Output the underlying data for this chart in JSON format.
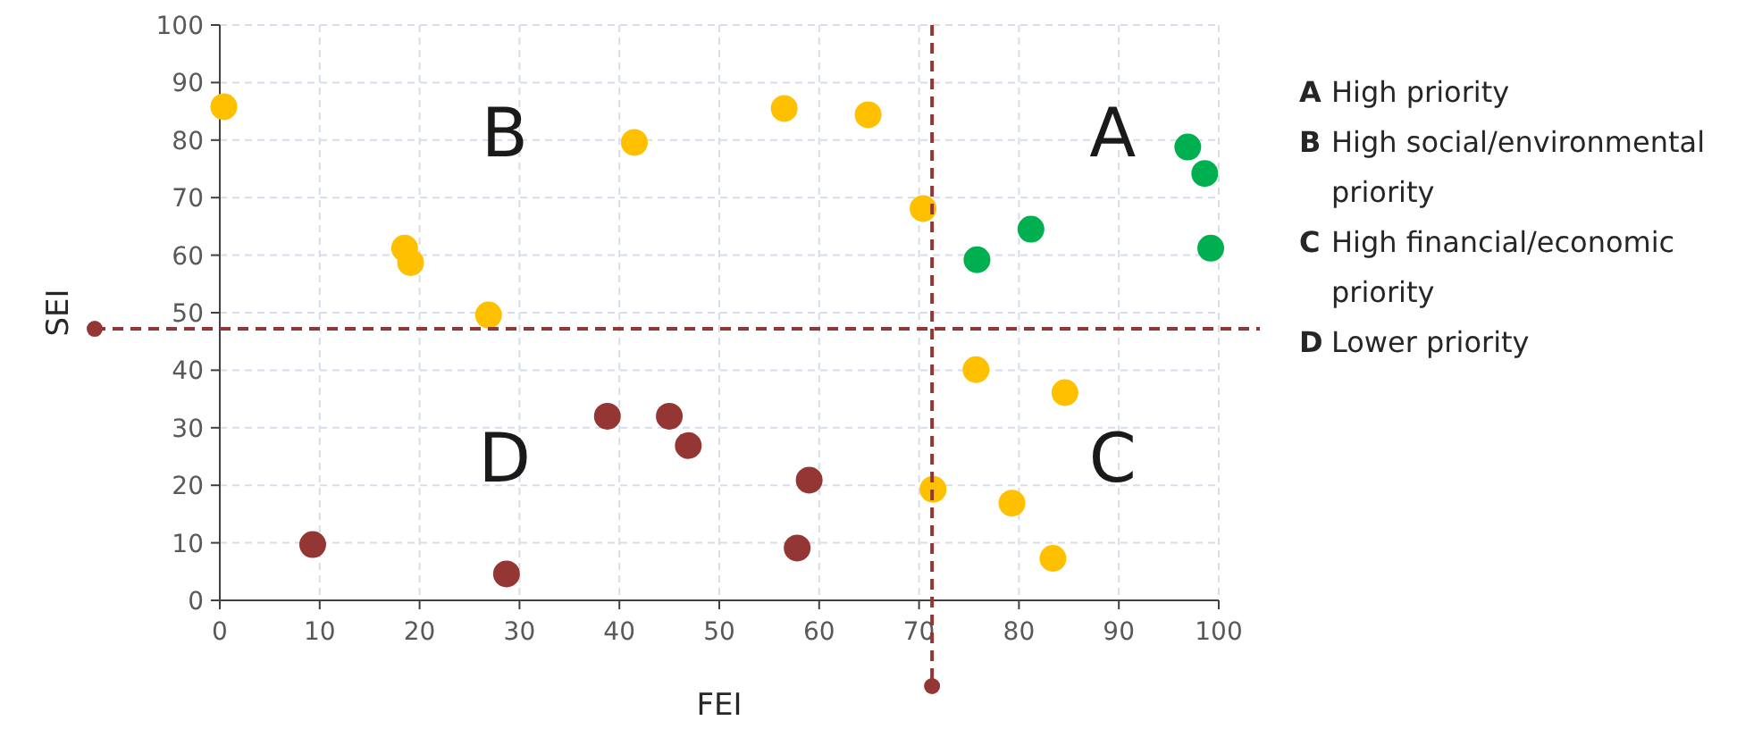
{
  "chart_data": {
    "type": "scatter",
    "xlabel": "FEI",
    "ylabel": "SEI",
    "xlim": [
      0,
      100
    ],
    "ylim": [
      0,
      100
    ],
    "xticks": [
      0,
      10,
      20,
      30,
      40,
      50,
      60,
      70,
      80,
      90,
      100
    ],
    "yticks": [
      0,
      10,
      20,
      30,
      40,
      50,
      60,
      70,
      80,
      90,
      100
    ],
    "grid": true,
    "marker": "circle",
    "series": [
      {
        "color": "#ffc000",
        "x": [
          0.4,
          18.5,
          19.1,
          26.9,
          41.5,
          56.5,
          64.9,
          70.4,
          75.7,
          84.6,
          71.4,
          79.3,
          83.4
        ],
        "values": [
          85.8,
          61.2,
          58.7,
          49.6,
          79.6,
          85.5,
          84.4,
          68.1,
          40.1,
          36.1,
          19.3,
          16.9,
          7.3
        ]
      },
      {
        "color": "#00b050",
        "x": [
          75.8,
          81.2,
          96.9,
          98.6,
          99.2
        ],
        "values": [
          59.2,
          64.5,
          78.8,
          74.2,
          61.2
        ]
      },
      {
        "color": "#943634",
        "x": [
          9.3,
          28.7,
          38.8,
          45.0,
          46.9,
          59.0,
          57.8
        ],
        "values": [
          9.7,
          4.6,
          32.0,
          32.0,
          26.9,
          20.9,
          9.1
        ]
      }
    ],
    "ref_lines": [
      {
        "axis": "x",
        "value": 71.3,
        "color": "#943634",
        "line_style": "dashed"
      },
      {
        "axis": "y",
        "value": 47.2,
        "color": "#943634",
        "line_style": "dashed"
      }
    ],
    "annotations": [
      "A",
      "B",
      "C",
      "D",
      "A High priority",
      "B High social/environmental priority",
      "C High financial/economic priority",
      "D Lower priority"
    ]
  }
}
